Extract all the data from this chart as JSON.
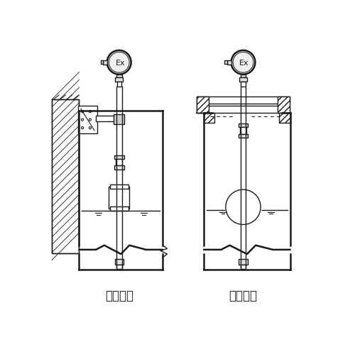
{
  "title_left": "架装固定",
  "title_right": "法兰固定",
  "bg_color": "#ffffff",
  "line_color": "#1a1a1a",
  "font_size_label": 12,
  "lw": 1.0,
  "lw2": 1.8
}
